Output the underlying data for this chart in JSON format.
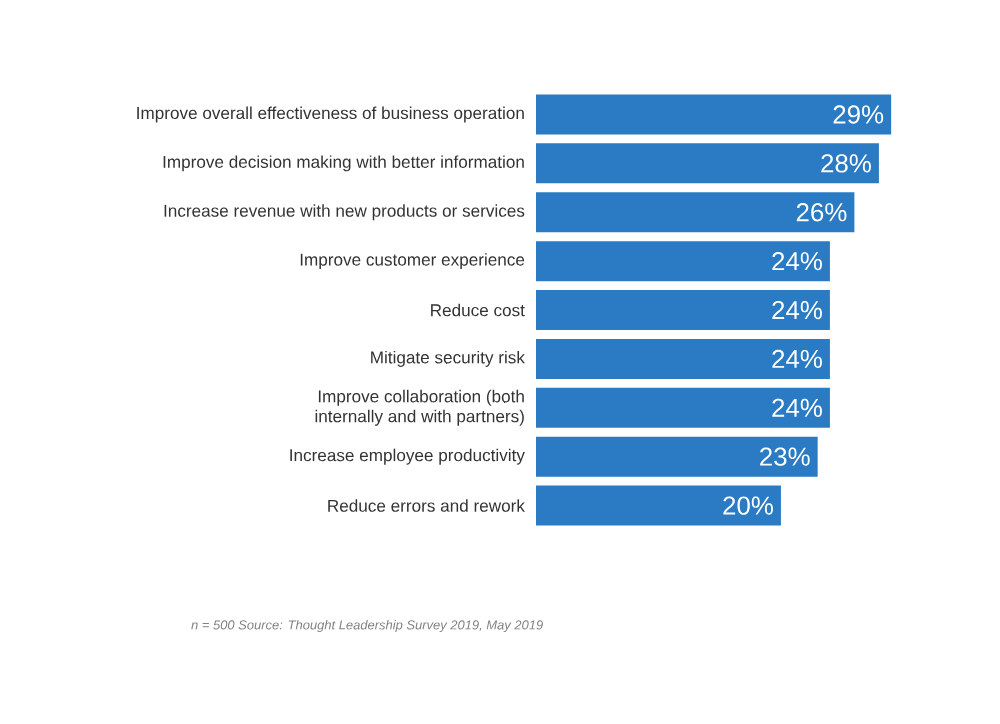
{
  "chart_data": {
    "type": "bar",
    "orientation": "horizontal",
    "categories": [
      "Improve overall effectiveness of business operation",
      "Improve decision making with better information",
      "Increase revenue with new products or services",
      "Improve customer experience",
      "Reduce cost",
      "Mitigate security risk",
      "Improve collaboration (both internally and with partners)",
      "Increase employee productivity",
      "Reduce errors and rework"
    ],
    "values": [
      29,
      28,
      26,
      24,
      24,
      24,
      24,
      23,
      20
    ],
    "value_labels": [
      "29%",
      "28%",
      "26%",
      "24%",
      "24%",
      "24%",
      "24%",
      "23%",
      "20%"
    ],
    "color": "#2a7bc4",
    "annotations": [
      "n = 500   Source: Thought Leadership Survey 2019, May 2019"
    ]
  }
}
